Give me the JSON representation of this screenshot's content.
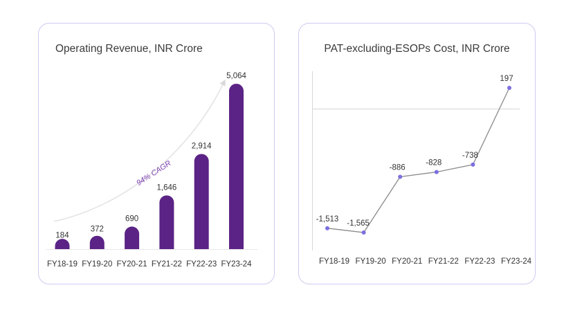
{
  "colors": {
    "bar": "#5b2385",
    "point": "#7b6fe0",
    "line": "#8a8a8a",
    "card_border": "#cfcaf0",
    "cagr_text": "#7b3fb0"
  },
  "chart_data": [
    {
      "type": "bar",
      "title": "Operating Revenue, INR Crore",
      "categories": [
        "FY18-19",
        "FY19-20",
        "FY20-21",
        "FY21-22",
        "FY22-23",
        "FY23-24"
      ],
      "values": [
        184,
        372,
        690,
        1646,
        2914,
        5064
      ],
      "value_labels": [
        "184",
        "372",
        "690",
        "1,646",
        "2,914",
        "5,064"
      ],
      "annotation": "94% CAGR",
      "xlabel": "",
      "ylabel": "",
      "ylim": [
        0,
        5064
      ]
    },
    {
      "type": "line",
      "title": "PAT-excluding-ESOPs Cost, INR Crore",
      "categories": [
        "FY18-19",
        "FY19-20",
        "FY20-21",
        "FY21-22",
        "FY22-23",
        "FY23-24"
      ],
      "values": [
        -1513,
        -1565,
        -886,
        -828,
        -738,
        197
      ],
      "value_labels": [
        "-1,513",
        "-1,565",
        "-886",
        "-828",
        "-738",
        "197"
      ],
      "xlabel": "",
      "ylabel": "",
      "ylim": [
        -1565,
        197
      ]
    }
  ]
}
